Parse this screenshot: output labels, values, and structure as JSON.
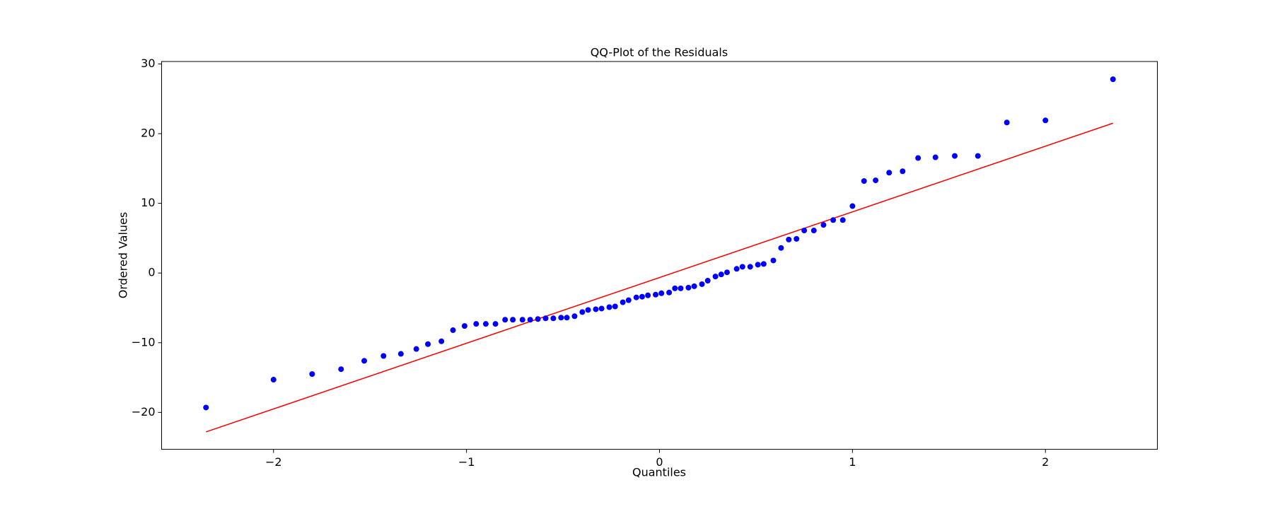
{
  "chart_data": {
    "type": "scatter",
    "title": "QQ-Plot of the Residuals",
    "x_label": "Quantiles",
    "y_label": "Ordered Values",
    "points": {
      "color": "#0000ff",
      "x": [
        -2.35,
        -2.0,
        -1.8,
        -1.65,
        -1.53,
        -1.43,
        -1.34,
        -1.26,
        -1.2,
        -1.13,
        -1.07,
        -1.01,
        -0.95,
        -0.9,
        -0.85,
        -0.8,
        -0.76,
        -0.71,
        -0.67,
        -0.63,
        -0.59,
        -0.55,
        -0.51,
        -0.48,
        -0.44,
        -0.4,
        -0.37,
        -0.33,
        -0.3,
        -0.26,
        -0.23,
        -0.19,
        -0.16,
        -0.12,
        -0.09,
        -0.06,
        -0.02,
        0.01,
        0.05,
        0.08,
        0.11,
        0.15,
        0.18,
        0.22,
        0.25,
        0.29,
        0.32,
        0.35,
        0.4,
        0.43,
        0.47,
        0.51,
        0.54,
        0.59,
        0.63,
        0.67,
        0.71,
        0.75,
        0.8,
        0.85,
        0.9,
        0.95,
        1.0,
        1.06,
        1.12,
        1.19,
        1.26,
        1.34,
        1.43,
        1.53,
        1.65,
        1.8,
        2.0,
        2.35
      ],
      "y": [
        -19.3,
        -15.3,
        -14.5,
        -13.8,
        -12.6,
        -11.9,
        -11.6,
        -10.9,
        -10.2,
        -9.8,
        -8.2,
        -7.6,
        -7.3,
        -7.3,
        -7.3,
        -6.7,
        -6.7,
        -6.7,
        -6.7,
        -6.6,
        -6.5,
        -6.5,
        -6.4,
        -6.4,
        -6.2,
        -5.6,
        -5.3,
        -5.2,
        -5.1,
        -4.9,
        -4.8,
        -4.2,
        -3.9,
        -3.5,
        -3.4,
        -3.2,
        -3.1,
        -2.9,
        -2.8,
        -2.2,
        -2.2,
        -2.1,
        -1.9,
        -1.6,
        -1.1,
        -0.5,
        -0.2,
        0.1,
        0.6,
        0.9,
        0.9,
        1.2,
        1.3,
        1.8,
        3.6,
        4.8,
        4.9,
        6.1,
        6.1,
        6.9,
        7.6,
        7.6,
        9.6,
        13.2,
        13.3,
        14.4,
        14.6,
        16.5,
        16.6,
        16.8,
        16.8,
        21.6,
        21.9,
        27.8
      ]
    },
    "fit_line": {
      "color": "#ff0000",
      "x": [
        -2.35,
        2.35
      ],
      "y": [
        -22.8,
        21.5
      ]
    },
    "xlim": [
      -2.58,
      2.58
    ],
    "ylim": [
      -25.3,
      30.35
    ],
    "xticks": [
      {
        "value": -2,
        "label": "−2"
      },
      {
        "value": -1,
        "label": "−1"
      },
      0,
      1,
      2
    ],
    "yticks": [
      {
        "value": -20,
        "label": "−20"
      },
      {
        "value": -10,
        "label": "−10"
      },
      0,
      10,
      20,
      30
    ]
  }
}
